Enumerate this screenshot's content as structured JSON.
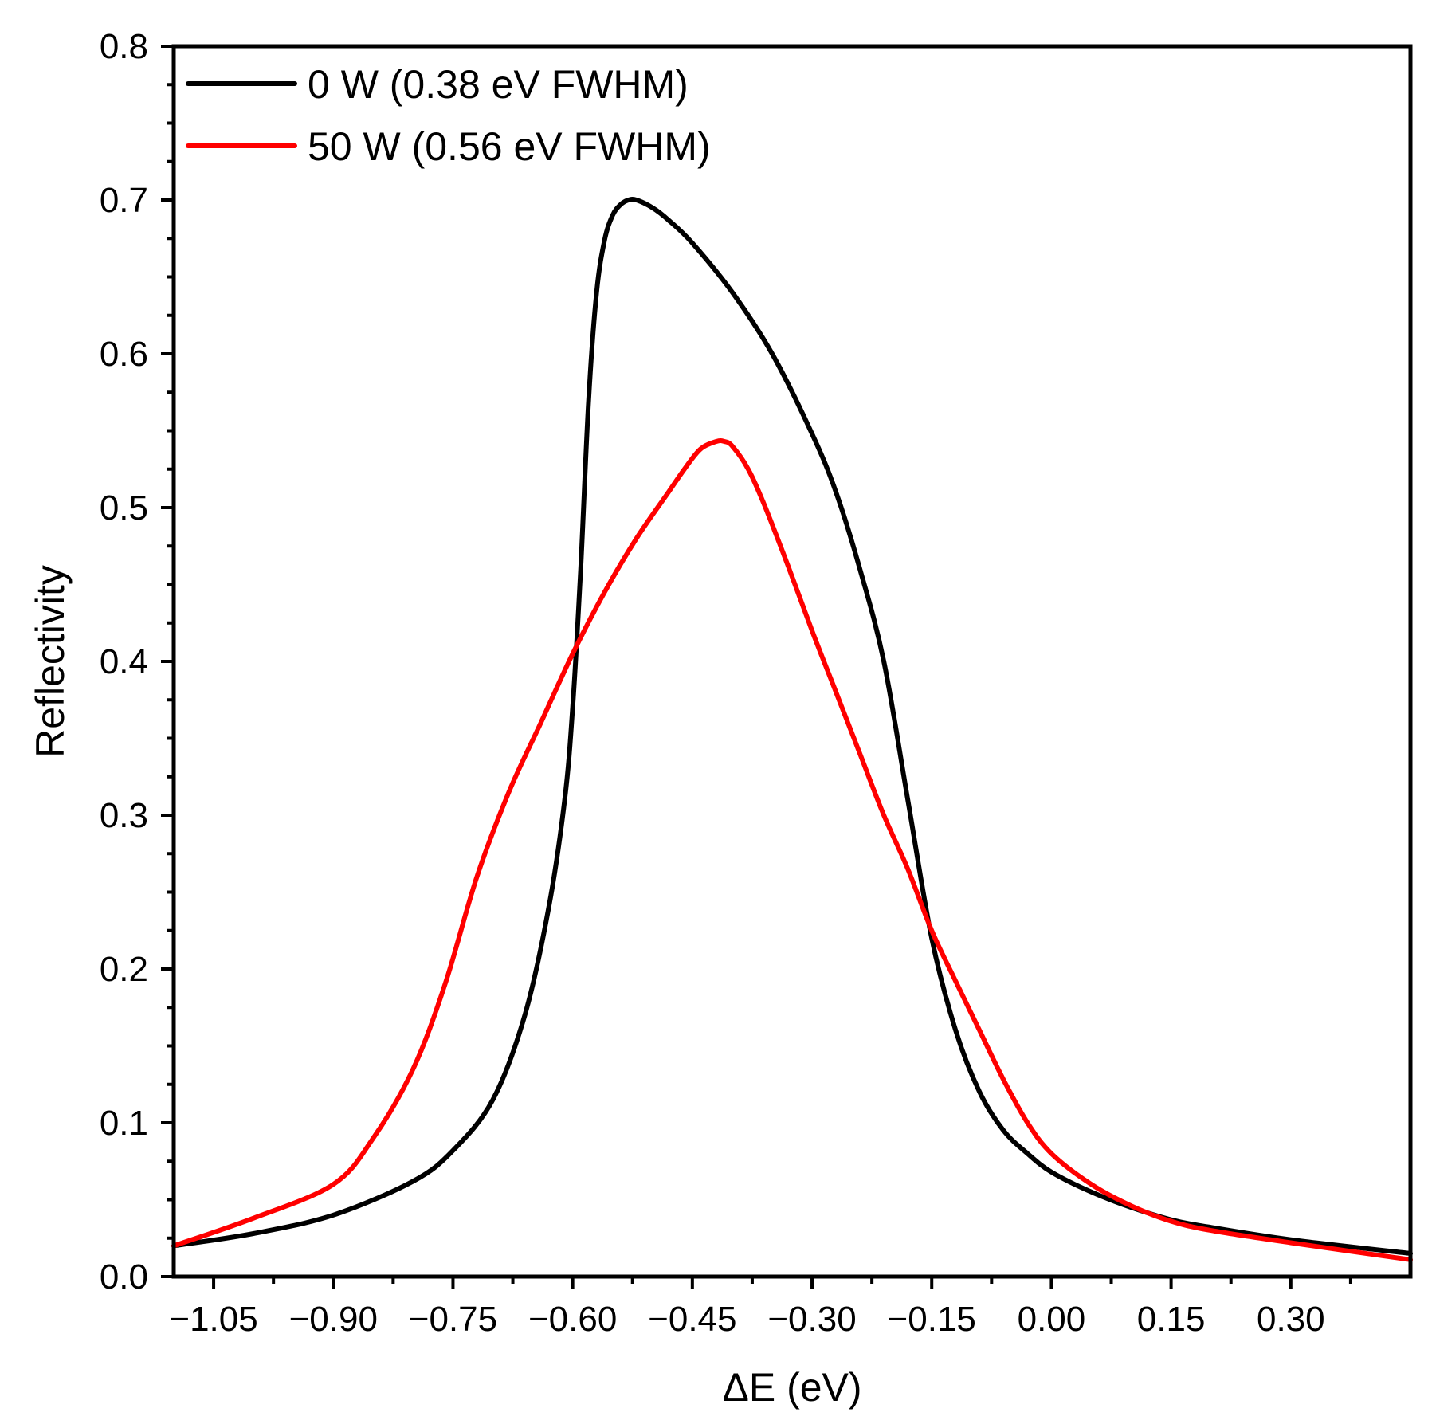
{
  "chart_data": {
    "type": "line",
    "xlabel": "ΔE (eV)",
    "ylabel": "Reflectivity",
    "xlim": [
      -1.1,
      0.45
    ],
    "ylim": [
      0.0,
      0.8
    ],
    "xticks": [
      -1.05,
      -0.9,
      -0.75,
      -0.6,
      -0.45,
      -0.3,
      -0.15,
      0.0,
      0.15,
      0.3
    ],
    "xtick_labels": [
      "−1.05",
      "−0.90",
      "−0.75",
      "−0.60",
      "−0.45",
      "−0.30",
      "−0.15",
      "0.00",
      "0.15",
      "0.30"
    ],
    "yticks": [
      0.0,
      0.1,
      0.2,
      0.3,
      0.4,
      0.5,
      0.6,
      0.7,
      0.8
    ],
    "ytick_labels": [
      "0.0",
      "0.1",
      "0.2",
      "0.3",
      "0.4",
      "0.5",
      "0.6",
      "0.7",
      "0.8"
    ],
    "legend_position": "top-left",
    "series": [
      {
        "name": "0 W (0.38 eV FWHM)",
        "color": "#000000",
        "x": [
          -1.1,
          -1.0,
          -0.9,
          -0.8,
          -0.75,
          -0.7,
          -0.66,
          -0.63,
          -0.61,
          -0.6,
          -0.59,
          -0.58,
          -0.57,
          -0.56,
          -0.55,
          -0.54,
          -0.53,
          -0.52,
          -0.5,
          -0.48,
          -0.45,
          -0.4,
          -0.35,
          -0.3,
          -0.27,
          -0.24,
          -0.21,
          -0.18,
          -0.15,
          -0.12,
          -0.09,
          -0.06,
          -0.03,
          0.0,
          0.05,
          0.1,
          0.15,
          0.2,
          0.3,
          0.45
        ],
        "y": [
          0.02,
          0.028,
          0.04,
          0.062,
          0.082,
          0.115,
          0.17,
          0.24,
          0.31,
          0.37,
          0.46,
          0.57,
          0.64,
          0.674,
          0.69,
          0.697,
          0.7,
          0.7,
          0.695,
          0.687,
          0.672,
          0.64,
          0.6,
          0.548,
          0.51,
          0.46,
          0.4,
          0.31,
          0.22,
          0.16,
          0.12,
          0.095,
          0.08,
          0.068,
          0.055,
          0.045,
          0.037,
          0.032,
          0.024,
          0.015
        ]
      },
      {
        "name": "50 W (0.56 eV FWHM)",
        "color": "#ff0000",
        "x": [
          -1.1,
          -1.0,
          -0.9,
          -0.85,
          -0.8,
          -0.76,
          -0.72,
          -0.68,
          -0.64,
          -0.6,
          -0.56,
          -0.52,
          -0.48,
          -0.46,
          -0.44,
          -0.42,
          -0.41,
          -0.4,
          -0.38,
          -0.36,
          -0.33,
          -0.3,
          -0.27,
          -0.24,
          -0.21,
          -0.18,
          -0.15,
          -0.12,
          -0.09,
          -0.06,
          -0.03,
          0.0,
          0.05,
          0.1,
          0.15,
          0.2,
          0.3,
          0.45
        ],
        "y": [
          0.02,
          0.038,
          0.06,
          0.09,
          0.135,
          0.19,
          0.26,
          0.315,
          0.36,
          0.405,
          0.445,
          0.48,
          0.51,
          0.525,
          0.538,
          0.543,
          0.543,
          0.54,
          0.525,
          0.502,
          0.462,
          0.42,
          0.38,
          0.34,
          0.3,
          0.265,
          0.225,
          0.192,
          0.16,
          0.128,
          0.1,
          0.08,
          0.06,
          0.046,
          0.036,
          0.03,
          0.022,
          0.011
        ]
      }
    ]
  }
}
